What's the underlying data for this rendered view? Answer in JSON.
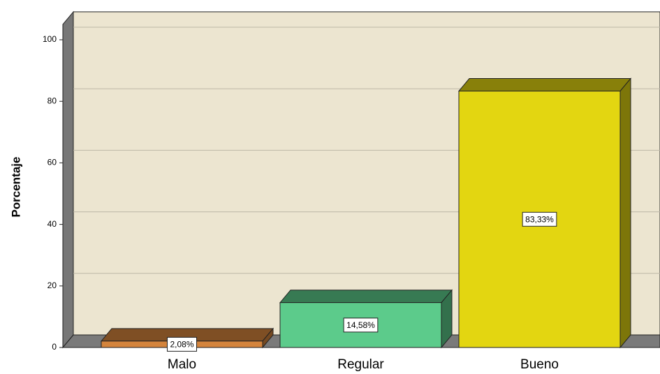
{
  "chart_data": {
    "type": "bar3d",
    "y_label": "Porcentaje",
    "categories": [
      "Malo",
      "Regular",
      "Bueno"
    ],
    "values": [
      2.08,
      14.58,
      83.33
    ],
    "value_labels": [
      "2,08%",
      "14,58%",
      "83,33%"
    ],
    "colors": [
      "#d4843c",
      "#5ccb8b",
      "#e3d611"
    ],
    "ylim": [
      0,
      105
    ],
    "yticks": [
      0,
      20,
      40,
      60,
      80,
      100
    ],
    "grid": true
  }
}
